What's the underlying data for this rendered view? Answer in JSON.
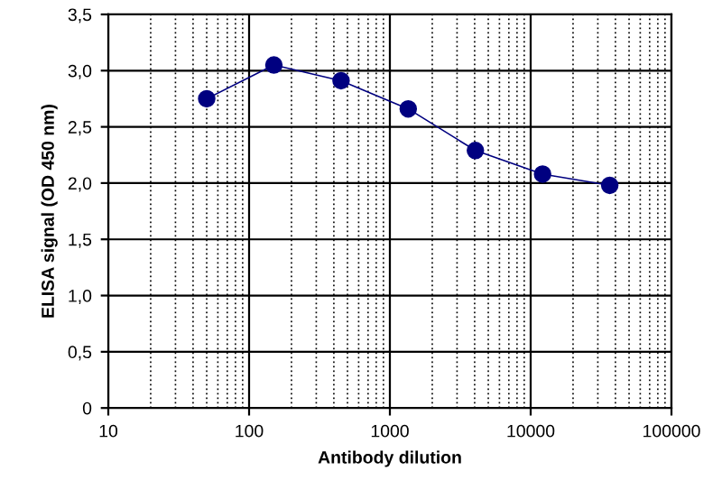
{
  "chart_data": {
    "type": "line",
    "xlabel": "Antibody dilution",
    "ylabel": "ELISA signal (OD 450 nm)",
    "log": "x",
    "grid": true,
    "marker": "circle",
    "line_style": "solid",
    "xlim": [
      10,
      100000
    ],
    "xticks": [
      10,
      100,
      1000,
      10000,
      100000
    ],
    "ylim": [
      0,
      3.5
    ],
    "yticks": [
      0,
      {
        "value": 0.5,
        "label": "0,5"
      },
      {
        "value": 1.0,
        "label": "1,0"
      },
      {
        "value": 1.5,
        "label": "1,5"
      },
      {
        "value": 2.0,
        "label": "2,0"
      },
      {
        "value": 2.5,
        "label": "2,5"
      },
      {
        "value": 3.0,
        "label": "3,0"
      },
      {
        "value": 3.5,
        "label": "3,5"
      }
    ],
    "series": [
      {
        "color": "#000080",
        "x": [
          50,
          150,
          450,
          1350,
          4050,
          12150,
          36450
        ],
        "values": [
          2.75,
          3.05,
          2.91,
          2.66,
          2.29,
          2.08,
          1.98
        ]
      }
    ]
  }
}
